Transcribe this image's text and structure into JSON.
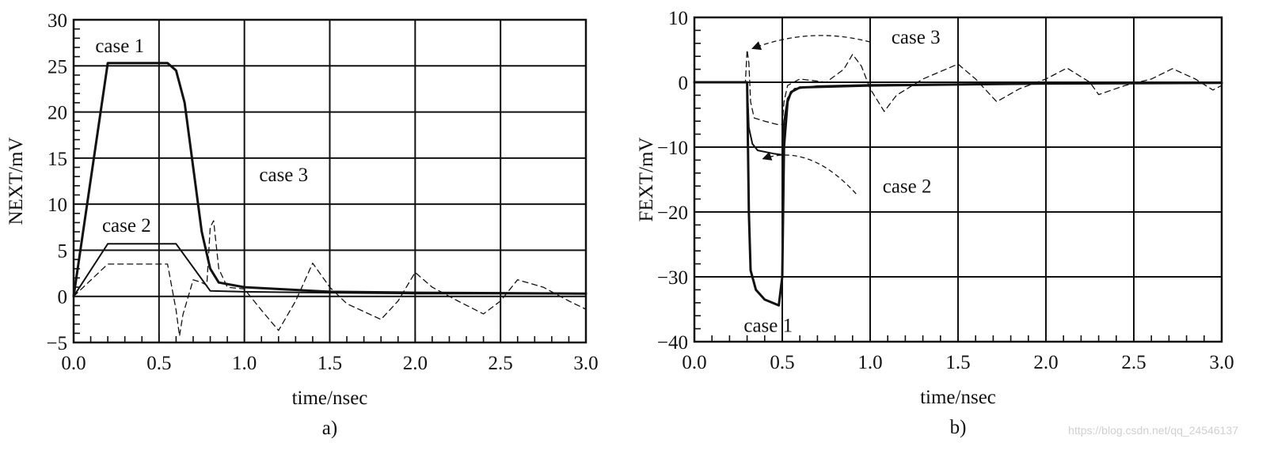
{
  "chart_data": [
    {
      "panel_label": "a)",
      "type": "line",
      "xlabel": "time/nsec",
      "ylabel": "NEXT/mV",
      "xlim": [
        0,
        3
      ],
      "ylim": [
        -5,
        30
      ],
      "xticks": [
        "0.0",
        "0.5",
        "1.0",
        "1.5",
        "2.0",
        "2.5",
        "3.0"
      ],
      "yticks": [
        "-5",
        "0",
        "5",
        "10",
        "15",
        "20",
        "25",
        "30"
      ],
      "grid": true,
      "series": [
        {
          "name": "case 1",
          "style": "solid-bold",
          "color": "#111111",
          "points": [
            [
              0.0,
              0.0
            ],
            [
              0.2,
              25.3
            ],
            [
              0.55,
              25.3
            ],
            [
              0.6,
              24.5
            ],
            [
              0.65,
              21.0
            ],
            [
              0.7,
              14.0
            ],
            [
              0.75,
              7.0
            ],
            [
              0.8,
              3.0
            ],
            [
              0.85,
              1.5
            ],
            [
              1.0,
              1.0
            ],
            [
              1.5,
              0.5
            ],
            [
              2.0,
              0.4
            ],
            [
              3.0,
              0.3
            ]
          ]
        },
        {
          "name": "case 2",
          "style": "solid",
          "color": "#111111",
          "points": [
            [
              0.0,
              0.0
            ],
            [
              0.2,
              5.7
            ],
            [
              0.6,
              5.7
            ],
            [
              0.8,
              0.6
            ],
            [
              1.0,
              0.5
            ],
            [
              1.5,
              0.4
            ],
            [
              2.0,
              0.3
            ],
            [
              3.0,
              0.3
            ]
          ]
        },
        {
          "name": "case 3",
          "style": "dashed",
          "color": "#111111",
          "points": [
            [
              0.0,
              0.0
            ],
            [
              0.2,
              3.5
            ],
            [
              0.55,
              3.5
            ],
            [
              0.6,
              -1.5
            ],
            [
              0.62,
              -4.3
            ],
            [
              0.64,
              -2.0
            ],
            [
              0.7,
              1.8
            ],
            [
              0.75,
              1.5
            ],
            [
              0.78,
              1.2
            ],
            [
              0.8,
              7.5
            ],
            [
              0.82,
              8.2
            ],
            [
              0.85,
              3.0
            ],
            [
              0.9,
              1.0
            ],
            [
              1.0,
              0.8
            ],
            [
              1.1,
              -1.5
            ],
            [
              1.2,
              -3.7
            ],
            [
              1.3,
              -0.5
            ],
            [
              1.4,
              3.6
            ],
            [
              1.5,
              1.0
            ],
            [
              1.6,
              -0.8
            ],
            [
              1.8,
              -2.5
            ],
            [
              1.9,
              -0.5
            ],
            [
              2.0,
              2.6
            ],
            [
              2.1,
              1.0
            ],
            [
              2.25,
              -0.5
            ],
            [
              2.4,
              -1.9
            ],
            [
              2.5,
              -0.5
            ],
            [
              2.6,
              1.8
            ],
            [
              2.75,
              1.0
            ],
            [
              2.9,
              -0.5
            ],
            [
              3.0,
              -1.4
            ]
          ]
        }
      ],
      "annotations": [
        {
          "text": "case 1",
          "x": 0.27,
          "y": 26.5
        },
        {
          "text": "case 2",
          "x": 0.31,
          "y": 7.0
        },
        {
          "text": "case 3",
          "x": 1.23,
          "y": 12.5
        }
      ]
    },
    {
      "panel_label": "b)",
      "type": "line",
      "xlabel": "time/nsec",
      "ylabel": "FEXT/mV",
      "xlim": [
        0,
        3
      ],
      "ylim": [
        -40,
        10
      ],
      "xticks": [
        "0.0",
        "0.5",
        "1.0",
        "1.5",
        "2.0",
        "2.5",
        "3.0"
      ],
      "yticks": [
        "-40",
        "-30",
        "-20",
        "-10",
        "0",
        "10"
      ],
      "grid": true,
      "series": [
        {
          "name": "case 1",
          "style": "solid-bold",
          "color": "#111111",
          "points": [
            [
              0.0,
              0.0
            ],
            [
              0.3,
              0.0
            ],
            [
              0.31,
              -20.0
            ],
            [
              0.32,
              -29.0
            ],
            [
              0.35,
              -32.0
            ],
            [
              0.4,
              -33.5
            ],
            [
              0.48,
              -34.4
            ],
            [
              0.5,
              -30.0
            ],
            [
              0.51,
              -10.0
            ],
            [
              0.53,
              -3.0
            ],
            [
              0.55,
              -1.5
            ],
            [
              0.6,
              -0.8
            ],
            [
              1.0,
              -0.5
            ],
            [
              2.0,
              -0.2
            ],
            [
              3.0,
              -0.1
            ]
          ]
        },
        {
          "name": "case 2",
          "style": "solid",
          "color": "#111111",
          "points": [
            [
              0.0,
              0.0
            ],
            [
              0.3,
              0.0
            ],
            [
              0.31,
              -7.0
            ],
            [
              0.33,
              -9.5
            ],
            [
              0.36,
              -10.5
            ],
            [
              0.45,
              -11.0
            ],
            [
              0.5,
              -11.2
            ],
            [
              0.51,
              -6.0
            ],
            [
              0.53,
              -2.5
            ],
            [
              0.57,
              -1.0
            ],
            [
              0.7,
              -0.6
            ],
            [
              1.0,
              -0.4
            ],
            [
              2.0,
              -0.2
            ],
            [
              3.0,
              -0.1
            ]
          ]
        },
        {
          "name": "case 3",
          "style": "dashed",
          "color": "#111111",
          "points": [
            [
              0.0,
              0.0
            ],
            [
              0.29,
              0.0
            ],
            [
              0.3,
              5.0
            ],
            [
              0.31,
              3.0
            ],
            [
              0.32,
              -3.0
            ],
            [
              0.34,
              -5.5
            ],
            [
              0.4,
              -6.0
            ],
            [
              0.47,
              -6.5
            ],
            [
              0.5,
              -6.5
            ],
            [
              0.51,
              -3.0
            ],
            [
              0.53,
              -0.5
            ],
            [
              0.6,
              0.5
            ],
            [
              0.75,
              0.0
            ],
            [
              0.85,
              2.0
            ],
            [
              0.9,
              4.3
            ],
            [
              0.95,
              2.5
            ],
            [
              1.0,
              -1.0
            ],
            [
              1.08,
              -4.5
            ],
            [
              1.15,
              -2.0
            ],
            [
              1.3,
              0.5
            ],
            [
              1.5,
              2.8
            ],
            [
              1.6,
              0.5
            ],
            [
              1.72,
              -3.0
            ],
            [
              1.85,
              -1.0
            ],
            [
              2.0,
              0.5
            ],
            [
              2.12,
              2.2
            ],
            [
              2.25,
              0.0
            ],
            [
              2.3,
              -1.9
            ],
            [
              2.45,
              -0.5
            ],
            [
              2.6,
              0.5
            ],
            [
              2.72,
              2.1
            ],
            [
              2.85,
              0.5
            ],
            [
              2.95,
              -1.2
            ],
            [
              3.0,
              -0.5
            ]
          ]
        }
      ],
      "annotations": [
        {
          "text": "case 3",
          "x": 1.26,
          "y": 6.0
        },
        {
          "text": "case 2",
          "x": 1.21,
          "y": -17.0
        },
        {
          "text": "case 1",
          "x": 0.42,
          "y": -38.5
        }
      ],
      "arrows": [
        {
          "from_series": "case 3",
          "from": [
            1.0,
            6.2
          ],
          "to": [
            0.33,
            5.2
          ]
        },
        {
          "from_series": "case 2",
          "from": [
            0.92,
            -17.2
          ],
          "to": [
            0.39,
            -11.8
          ]
        }
      ]
    }
  ],
  "watermark": "https://blog.csdn.net/qq_24546137"
}
